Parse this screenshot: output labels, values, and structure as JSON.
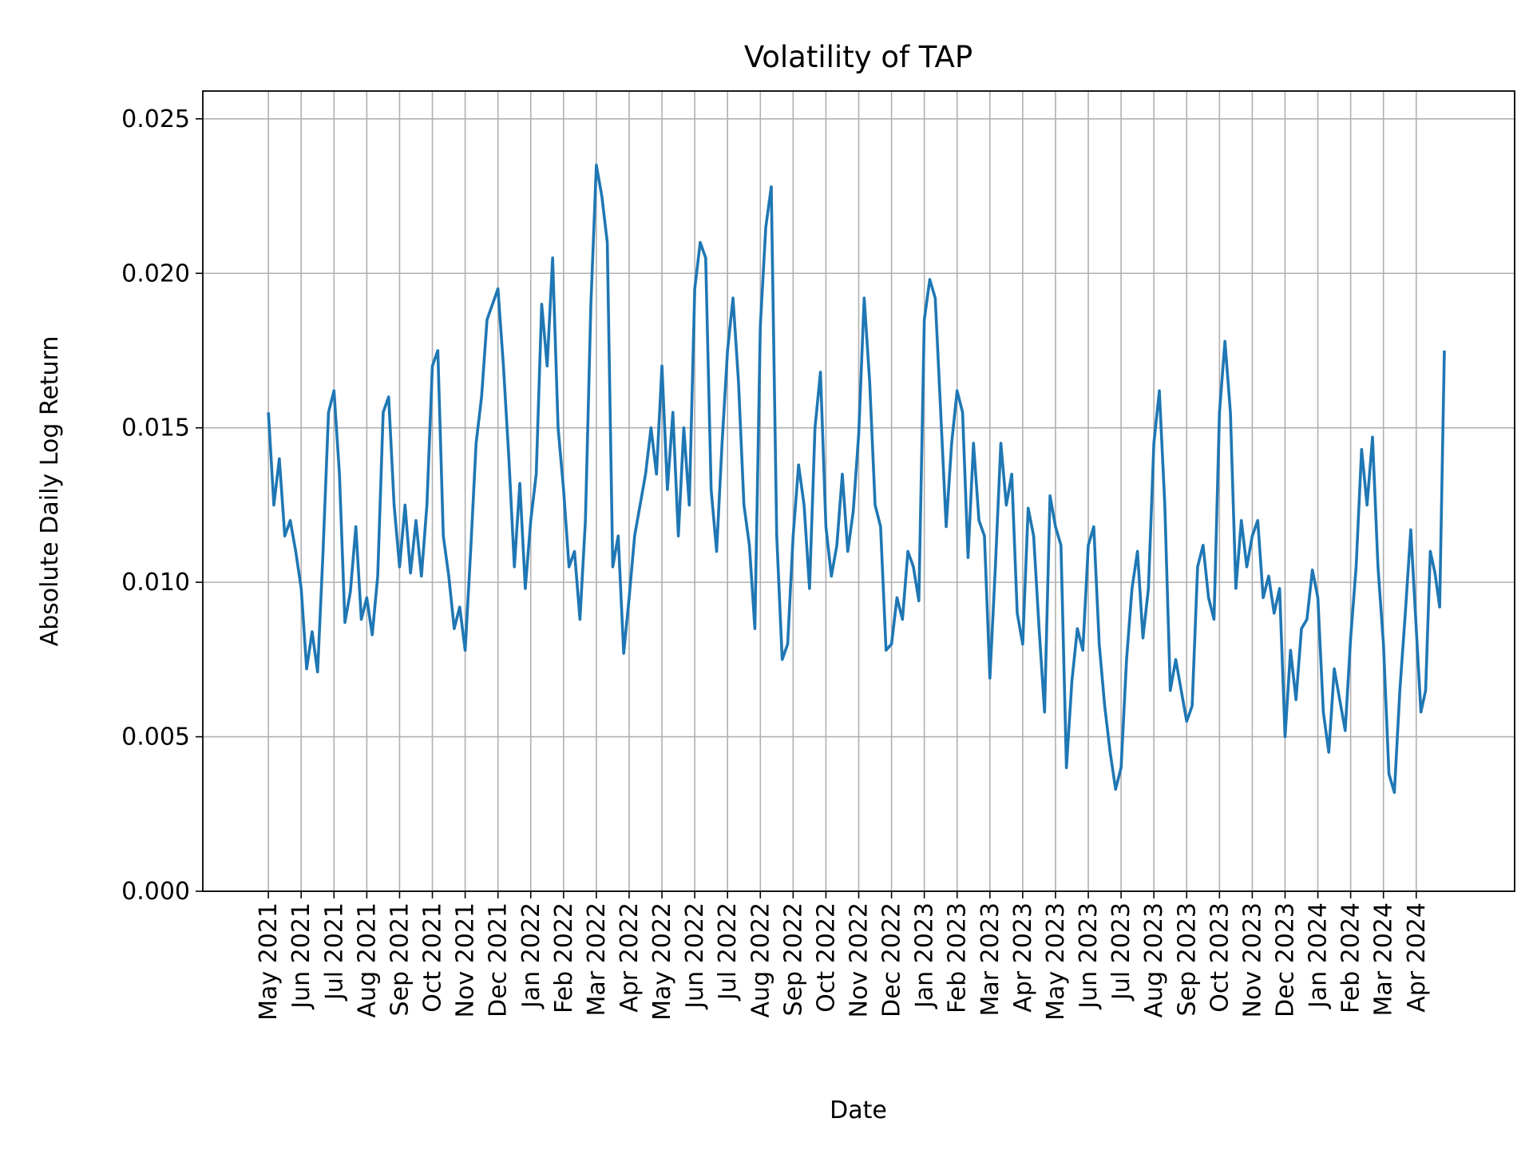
{
  "chart_data": {
    "type": "line",
    "title": "Volatility of TAP",
    "xlabel": "Date",
    "ylabel": "Absolute Daily Log Return",
    "grid": true,
    "xlim": [
      "2021-03",
      "2024-07"
    ],
    "xticks": [
      {
        "value": "2021-05",
        "label": "May 2021"
      },
      {
        "value": "2021-06",
        "label": "Jun 2021"
      },
      {
        "value": "2021-07",
        "label": "Jul 2021"
      },
      {
        "value": "2021-08",
        "label": "Aug 2021"
      },
      {
        "value": "2021-09",
        "label": "Sep 2021"
      },
      {
        "value": "2021-10",
        "label": "Oct 2021"
      },
      {
        "value": "2021-11",
        "label": "Nov 2021"
      },
      {
        "value": "2021-12",
        "label": "Dec 2021"
      },
      {
        "value": "2022-01",
        "label": "Jan 2022"
      },
      {
        "value": "2022-02",
        "label": "Feb 2022"
      },
      {
        "value": "2022-03",
        "label": "Mar 2022"
      },
      {
        "value": "2022-04",
        "label": "Apr 2022"
      },
      {
        "value": "2022-05",
        "label": "May 2022"
      },
      {
        "value": "2022-06",
        "label": "Jun 2022"
      },
      {
        "value": "2022-07",
        "label": "Jul 2022"
      },
      {
        "value": "2022-08",
        "label": "Aug 2022"
      },
      {
        "value": "2022-09",
        "label": "Sep 2022"
      },
      {
        "value": "2022-10",
        "label": "Oct 2022"
      },
      {
        "value": "2022-11",
        "label": "Nov 2022"
      },
      {
        "value": "2022-12",
        "label": "Dec 2022"
      },
      {
        "value": "2023-01",
        "label": "Jan 2023"
      },
      {
        "value": "2023-02",
        "label": "Feb 2023"
      },
      {
        "value": "2023-03",
        "label": "Mar 2023"
      },
      {
        "value": "2023-04",
        "label": "Apr 2023"
      },
      {
        "value": "2023-05",
        "label": "May 2023"
      },
      {
        "value": "2023-06",
        "label": "Jun 2023"
      },
      {
        "value": "2023-07",
        "label": "Jul 2023"
      },
      {
        "value": "2023-08",
        "label": "Aug 2023"
      },
      {
        "value": "2023-09",
        "label": "Sep 2023"
      },
      {
        "value": "2023-10",
        "label": "Oct 2023"
      },
      {
        "value": "2023-11",
        "label": "Nov 2023"
      },
      {
        "value": "2023-12",
        "label": "Dec 2023"
      },
      {
        "value": "2024-01",
        "label": "Jan 2024"
      },
      {
        "value": "2024-02",
        "label": "Feb 2024"
      },
      {
        "value": "2024-03",
        "label": "Mar 2024"
      },
      {
        "value": "2024-04",
        "label": "Apr 2024"
      }
    ],
    "ylim": [
      0,
      0.0259
    ],
    "yticks": [
      {
        "value": 0,
        "label": "0.000"
      },
      0.005,
      {
        "value": 0.01,
        "label": "0.010"
      },
      0.015,
      {
        "value": 0.02,
        "label": "0.020"
      },
      0.025
    ],
    "x": [
      "2021-05",
      "2021-05",
      "2021-05",
      "2021-05",
      "2021-05",
      "2021-05",
      "2021-06",
      "2021-06",
      "2021-06",
      "2021-06",
      "2021-06",
      "2021-06",
      "2021-07",
      "2021-07",
      "2021-07",
      "2021-07",
      "2021-07",
      "2021-07",
      "2021-08",
      "2021-08",
      "2021-08",
      "2021-08",
      "2021-08",
      "2021-08",
      "2021-09",
      "2021-09",
      "2021-09",
      "2021-09",
      "2021-09",
      "2021-09",
      "2021-10",
      "2021-10",
      "2021-10",
      "2021-10",
      "2021-10",
      "2021-10",
      "2021-11",
      "2021-11",
      "2021-11",
      "2021-11",
      "2021-11",
      "2021-11",
      "2021-12",
      "2021-12",
      "2021-12",
      "2021-12",
      "2021-12",
      "2021-12",
      "2022-01",
      "2022-01",
      "2022-01",
      "2022-01",
      "2022-01",
      "2022-01",
      "2022-02",
      "2022-02",
      "2022-02",
      "2022-02",
      "2022-02",
      "2022-02",
      "2022-03",
      "2022-03",
      "2022-03",
      "2022-03",
      "2022-03",
      "2022-03",
      "2022-04",
      "2022-04",
      "2022-04",
      "2022-04",
      "2022-04",
      "2022-04",
      "2022-05",
      "2022-05",
      "2022-05",
      "2022-05",
      "2022-05",
      "2022-05",
      "2022-06",
      "2022-06",
      "2022-06",
      "2022-06",
      "2022-06",
      "2022-06",
      "2022-07",
      "2022-07",
      "2022-07",
      "2022-07",
      "2022-07",
      "2022-07",
      "2022-08",
      "2022-08",
      "2022-08",
      "2022-08",
      "2022-08",
      "2022-08",
      "2022-09",
      "2022-09",
      "2022-09",
      "2022-09",
      "2022-09",
      "2022-09",
      "2022-10",
      "2022-10",
      "2022-10",
      "2022-10",
      "2022-10",
      "2022-10",
      "2022-11",
      "2022-11",
      "2022-11",
      "2022-11",
      "2022-11",
      "2022-11",
      "2022-12",
      "2022-12",
      "2022-12",
      "2022-12",
      "2022-12",
      "2022-12",
      "2023-01",
      "2023-01",
      "2023-01",
      "2023-01",
      "2023-01",
      "2023-01",
      "2023-02",
      "2023-02",
      "2023-02",
      "2023-02",
      "2023-02",
      "2023-02",
      "2023-03",
      "2023-03",
      "2023-03",
      "2023-03",
      "2023-03",
      "2023-03",
      "2023-04",
      "2023-04",
      "2023-04",
      "2023-04",
      "2023-04",
      "2023-04",
      "2023-05",
      "2023-05",
      "2023-05",
      "2023-05",
      "2023-05",
      "2023-05",
      "2023-06",
      "2023-06",
      "2023-06",
      "2023-06",
      "2023-06",
      "2023-06",
      "2023-07",
      "2023-07",
      "2023-07",
      "2023-07",
      "2023-07",
      "2023-07",
      "2023-08",
      "2023-08",
      "2023-08",
      "2023-08",
      "2023-08",
      "2023-08",
      "2023-09",
      "2023-09",
      "2023-09",
      "2023-09",
      "2023-09",
      "2023-09",
      "2023-10",
      "2023-10",
      "2023-10",
      "2023-10",
      "2023-10",
      "2023-10",
      "2023-11",
      "2023-11",
      "2023-11",
      "2023-11",
      "2023-11",
      "2023-11",
      "2023-12",
      "2023-12",
      "2023-12",
      "2023-12",
      "2023-12",
      "2023-12",
      "2024-01",
      "2024-01",
      "2024-01",
      "2024-01",
      "2024-01",
      "2024-01",
      "2024-02",
      "2024-02",
      "2024-02",
      "2024-02",
      "2024-02",
      "2024-02",
      "2024-03",
      "2024-03",
      "2024-03",
      "2024-03",
      "2024-03",
      "2024-03",
      "2024-04",
      "2024-04",
      "2024-04",
      "2024-04",
      "2024-04",
      "2024-04",
      "2024-04"
    ],
    "series": [
      {
        "color": "#1f77b4",
        "values": [
          0.0155,
          0.0125,
          0.014,
          0.0115,
          0.012,
          0.011,
          0.0098,
          0.0072,
          0.0084,
          0.0071,
          0.011,
          0.0155,
          0.0162,
          0.0135,
          0.0087,
          0.0097,
          0.0118,
          0.0088,
          0.0095,
          0.0083,
          0.0102,
          0.0155,
          0.016,
          0.0125,
          0.0105,
          0.0125,
          0.0103,
          0.012,
          0.0102,
          0.0125,
          0.017,
          0.0175,
          0.0115,
          0.0102,
          0.0085,
          0.0092,
          0.0078,
          0.011,
          0.0145,
          0.016,
          0.0185,
          0.019,
          0.0195,
          0.017,
          0.014,
          0.0105,
          0.0132,
          0.0098,
          0.012,
          0.0135,
          0.019,
          0.017,
          0.0205,
          0.015,
          0.013,
          0.0105,
          0.011,
          0.0088,
          0.012,
          0.019,
          0.0235,
          0.0225,
          0.021,
          0.0105,
          0.0115,
          0.0077,
          0.0095,
          0.0115,
          0.0125,
          0.0135,
          0.015,
          0.0135,
          0.017,
          0.013,
          0.0155,
          0.0115,
          0.015,
          0.0125,
          0.0195,
          0.021,
          0.0205,
          0.013,
          0.011,
          0.0145,
          0.0175,
          0.0192,
          0.0165,
          0.0125,
          0.0112,
          0.0085,
          0.0183,
          0.0215,
          0.0228,
          0.0115,
          0.0075,
          0.008,
          0.0115,
          0.0138,
          0.0125,
          0.0098,
          0.015,
          0.0168,
          0.0118,
          0.0102,
          0.0112,
          0.0135,
          0.011,
          0.0123,
          0.0148,
          0.0192,
          0.0165,
          0.0125,
          0.0118,
          0.0078,
          0.008,
          0.0095,
          0.0088,
          0.011,
          0.0105,
          0.0094,
          0.0185,
          0.0198,
          0.0192,
          0.0155,
          0.0118,
          0.0145,
          0.0162,
          0.0155,
          0.0108,
          0.0145,
          0.012,
          0.0115,
          0.0069,
          0.0105,
          0.0145,
          0.0125,
          0.0135,
          0.009,
          0.008,
          0.0124,
          0.0115,
          0.0085,
          0.0058,
          0.0128,
          0.0118,
          0.0112,
          0.004,
          0.0068,
          0.0085,
          0.0078,
          0.0112,
          0.0118,
          0.008,
          0.006,
          0.0045,
          0.0033,
          0.004,
          0.0075,
          0.0098,
          0.011,
          0.0082,
          0.0098,
          0.0145,
          0.0162,
          0.0125,
          0.0065,
          0.0075,
          0.0065,
          0.0055,
          0.006,
          0.0105,
          0.0112,
          0.0095,
          0.0088,
          0.0155,
          0.0178,
          0.0155,
          0.0098,
          0.012,
          0.0105,
          0.0115,
          0.012,
          0.0095,
          0.0102,
          0.009,
          0.0098,
          0.005,
          0.0078,
          0.0062,
          0.0085,
          0.0088,
          0.0104,
          0.0095,
          0.0058,
          0.0045,
          0.0072,
          0.0062,
          0.0052,
          0.0082,
          0.0105,
          0.0143,
          0.0125,
          0.0147,
          0.0105,
          0.008,
          0.0038,
          0.0032,
          0.0065,
          0.009,
          0.0117,
          0.0085,
          0.0058,
          0.0065,
          0.011,
          0.0103,
          0.0092,
          0.0175
        ]
      }
    ]
  }
}
